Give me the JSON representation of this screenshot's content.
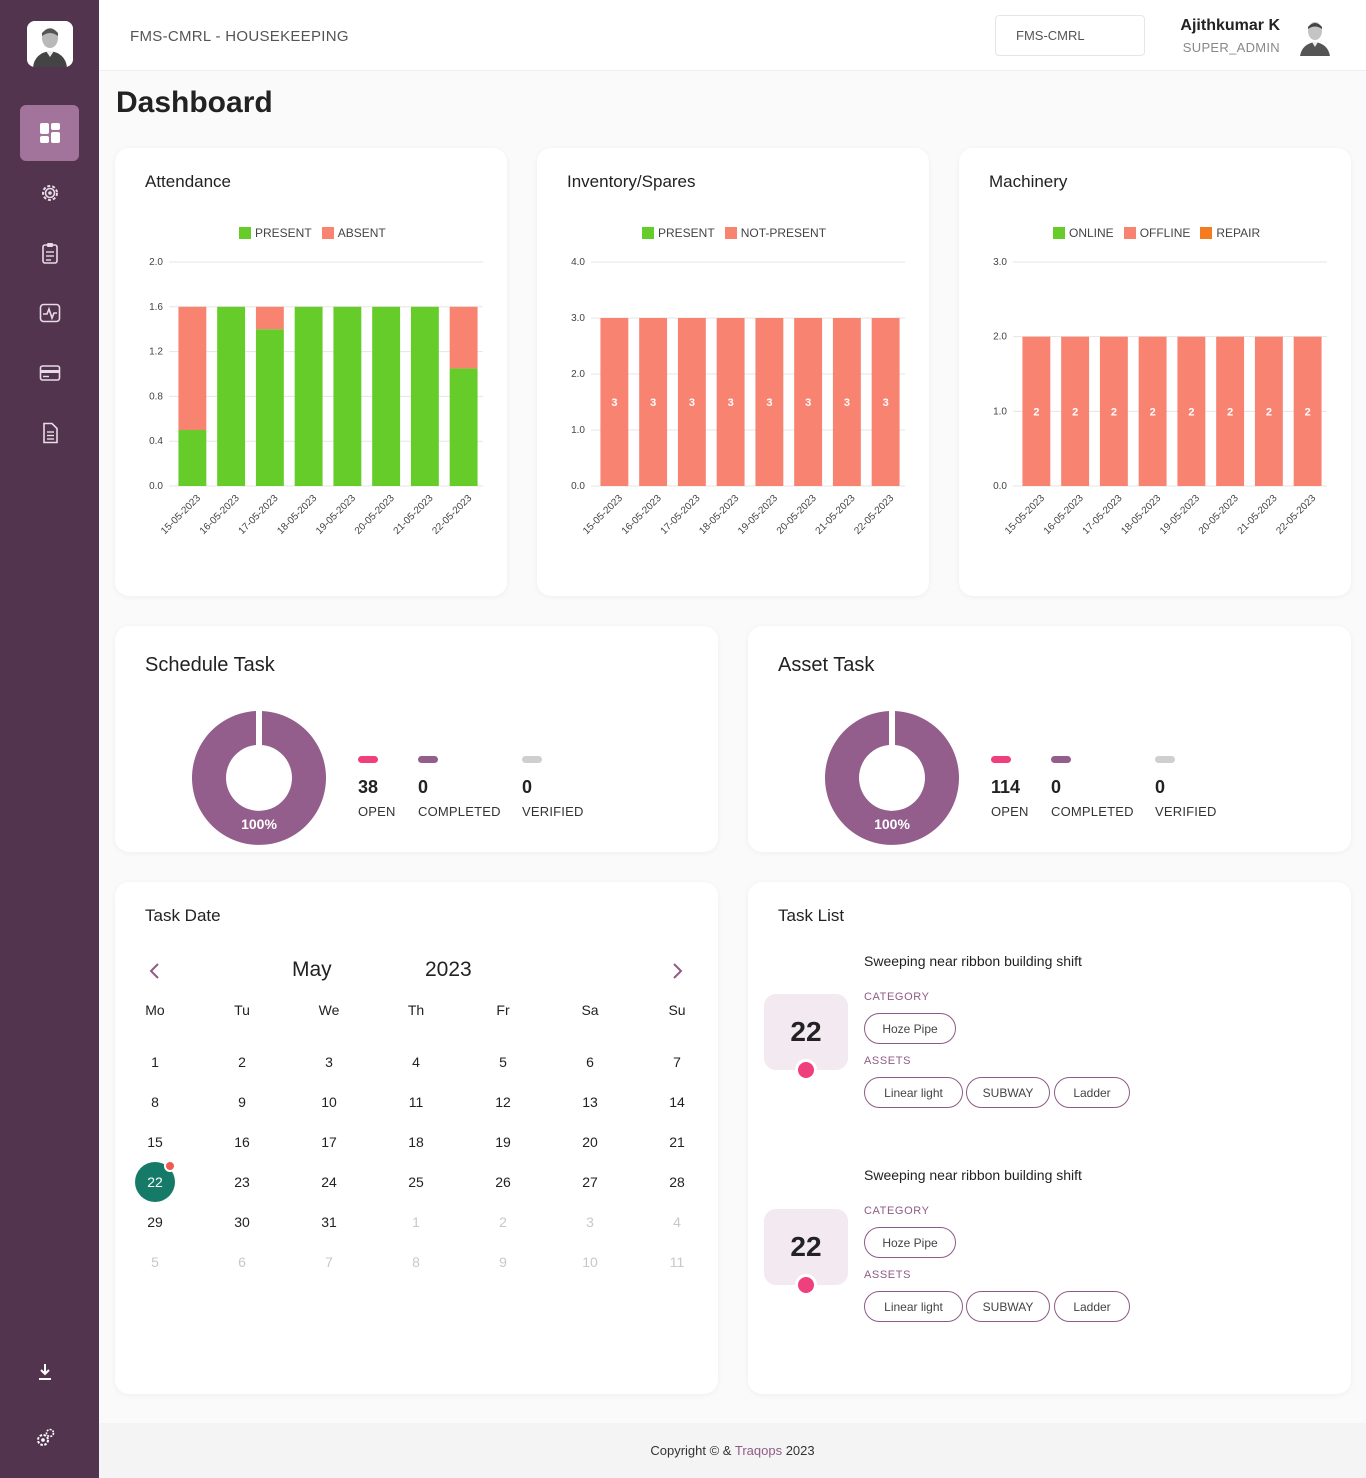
{
  "header": {
    "breadcrumb": "FMS-CMRL - HOUSEKEEPING",
    "site": "FMS-CMRL",
    "user_name": "Ajithkumar K",
    "user_role": "SUPER_ADMIN"
  },
  "sidebar": {
    "items": [
      {
        "icon": "dashboard-icon",
        "active": true
      },
      {
        "icon": "gear-icon",
        "active": false
      },
      {
        "icon": "clipboard-icon",
        "active": false
      },
      {
        "icon": "activity-icon",
        "active": false
      },
      {
        "icon": "card-icon",
        "active": false
      },
      {
        "icon": "document-icon",
        "active": false
      }
    ],
    "bottom": [
      {
        "icon": "download-icon"
      },
      {
        "icon": "settings-icon"
      }
    ]
  },
  "page_title": "Dashboard",
  "colors": {
    "present": "#66cc2a",
    "absent": "#f88371",
    "repair": "#f47b20",
    "accent": "#8e5b87",
    "sidebar": "#53344f",
    "donut": "#935e8c",
    "open": "#ef3f7c",
    "completed": "#935e8c",
    "verified": "#cfcfcf"
  },
  "chart_data": [
    {
      "type": "bar",
      "title": "Attendance",
      "stacked": true,
      "categories": [
        "15-05-2023",
        "16-05-2023",
        "17-05-2023",
        "18-05-2023",
        "19-05-2023",
        "20-05-2023",
        "21-05-2023",
        "22-05-2023"
      ],
      "series": [
        {
          "name": "PRESENT",
          "color": "#66cc2a",
          "values": [
            0.5,
            1.6,
            1.4,
            1.6,
            1.6,
            1.6,
            1.6,
            1.05
          ]
        },
        {
          "name": "ABSENT",
          "color": "#f88371",
          "values": [
            1.1,
            0,
            0.2,
            0,
            0,
            0,
            0,
            0.55
          ]
        }
      ],
      "yticks": [
        "0.0",
        "0.4",
        "0.8",
        "1.2",
        "1.6",
        "2.0"
      ],
      "ylim": [
        0,
        2.0
      ],
      "show_labels": false
    },
    {
      "type": "bar",
      "title": "Inventory/Spares",
      "stacked": true,
      "categories": [
        "15-05-2023",
        "16-05-2023",
        "17-05-2023",
        "18-05-2023",
        "19-05-2023",
        "20-05-2023",
        "21-05-2023",
        "22-05-2023"
      ],
      "series": [
        {
          "name": "PRESENT",
          "color": "#66cc2a",
          "values": [
            0,
            0,
            0,
            0,
            0,
            0,
            0,
            0
          ]
        },
        {
          "name": "NOT-PRESENT",
          "color": "#f88371",
          "values": [
            3,
            3,
            3,
            3,
            3,
            3,
            3,
            3
          ]
        }
      ],
      "yticks": [
        "0.0",
        "1.0",
        "2.0",
        "3.0",
        "4.0"
      ],
      "ylim": [
        0,
        4.0
      ],
      "show_labels": true
    },
    {
      "type": "bar",
      "title": "Machinery",
      "stacked": true,
      "categories": [
        "15-05-2023",
        "16-05-2023",
        "17-05-2023",
        "18-05-2023",
        "19-05-2023",
        "20-05-2023",
        "21-05-2023",
        "22-05-2023"
      ],
      "series": [
        {
          "name": "ONLINE",
          "color": "#66cc2a",
          "values": [
            0,
            0,
            0,
            0,
            0,
            0,
            0,
            0
          ]
        },
        {
          "name": "OFFLINE",
          "color": "#f88371",
          "values": [
            2,
            2,
            2,
            2,
            2,
            2,
            2,
            2
          ]
        },
        {
          "name": "REPAIR",
          "color": "#f47b20",
          "values": [
            0,
            0,
            0,
            0,
            0,
            0,
            0,
            0
          ]
        }
      ],
      "yticks": [
        "0.0",
        "1.0",
        "2.0",
        "3.0"
      ],
      "ylim": [
        0,
        3.0
      ],
      "show_labels": true
    }
  ],
  "schedule_task": {
    "title": "Schedule Task",
    "percent": "100%",
    "open": {
      "value": "38",
      "label": "OPEN"
    },
    "completed": {
      "value": "0",
      "label": "COMPLETED"
    },
    "verified": {
      "value": "0",
      "label": "VERIFIED"
    }
  },
  "asset_task": {
    "title": "Asset Task",
    "percent": "100%",
    "open": {
      "value": "114",
      "label": "OPEN"
    },
    "completed": {
      "value": "0",
      "label": "COMPLETED"
    },
    "verified": {
      "value": "0",
      "label": "VERIFIED"
    }
  },
  "calendar": {
    "title": "Task Date",
    "month": "May",
    "year": "2023",
    "weekdays": [
      "Mo",
      "Tu",
      "We",
      "Th",
      "Fr",
      "Sa",
      "Su"
    ],
    "weeks": [
      [
        "1",
        "2",
        "3",
        "4",
        "5",
        "6",
        "7"
      ],
      [
        "8",
        "9",
        "10",
        "11",
        "12",
        "13",
        "14"
      ],
      [
        "15",
        "16",
        "17",
        "18",
        "19",
        "20",
        "21"
      ],
      [
        "22",
        "23",
        "24",
        "25",
        "26",
        "27",
        "28"
      ],
      [
        "29",
        "30",
        "31",
        "1",
        "2",
        "3",
        "4"
      ],
      [
        "5",
        "6",
        "7",
        "8",
        "9",
        "10",
        "11"
      ]
    ],
    "selected": "22"
  },
  "task_list": {
    "title": "Task List",
    "category_label": "CATEGORY",
    "assets_label": "ASSETS",
    "tasks": [
      {
        "day": "22",
        "title": "Sweeping near ribbon building shift",
        "category": "Hoze Pipe",
        "assets": [
          "Linear light",
          "SUBWAY",
          "Ladder"
        ]
      },
      {
        "day": "22",
        "title": "Sweeping near ribbon building shift",
        "category": "Hoze Pipe",
        "assets": [
          "Linear light",
          "SUBWAY",
          "Ladder"
        ]
      }
    ]
  },
  "footer": {
    "prefix": "Copyright © & ",
    "brand": "Traqops",
    "suffix": " 2023"
  }
}
